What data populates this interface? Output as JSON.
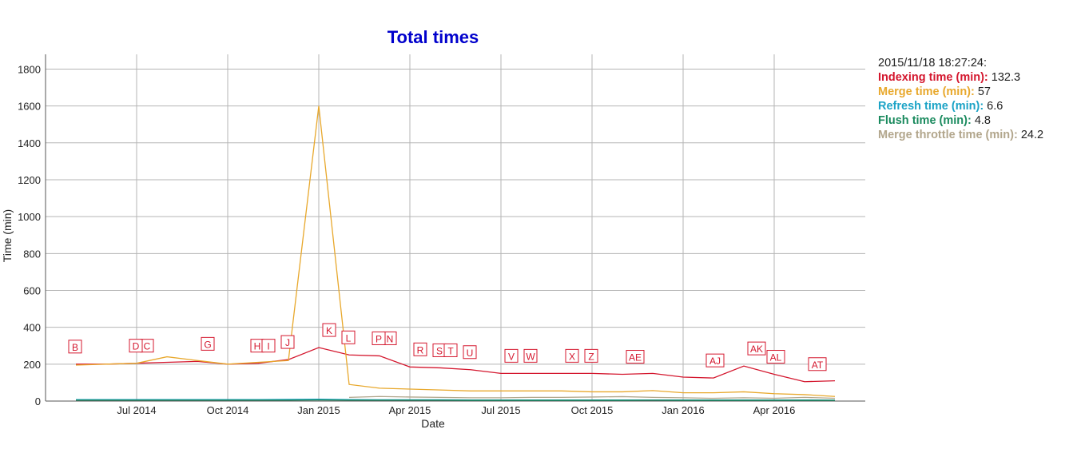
{
  "chart_data": {
    "type": "line",
    "title": "Total times",
    "x_label": "Date",
    "y_label": "Time (min)",
    "x": [
      "2014-05",
      "2014-06",
      "2014-07",
      "2014-08",
      "2014-09",
      "2014-10",
      "2014-11",
      "2014-12",
      "2015-01",
      "2015-02",
      "2015-03",
      "2015-04",
      "2015-05",
      "2015-06",
      "2015-07",
      "2015-08",
      "2015-09",
      "2015-10",
      "2015-11",
      "2015-12",
      "2016-01",
      "2016-02",
      "2016-03",
      "2016-04",
      "2016-05",
      "2016-06"
    ],
    "series": [
      {
        "name": "Indexing time (min)",
        "color": "#d4172e",
        "values": [
          200,
          200,
          205,
          210,
          215,
          200,
          205,
          225,
          290,
          250,
          245,
          185,
          180,
          170,
          150,
          150,
          150,
          150,
          145,
          150,
          130,
          125,
          190,
          145,
          105,
          110
        ]
      },
      {
        "name": "Merge time (min)",
        "color": "#e8a82c",
        "values": [
          195,
          200,
          205,
          240,
          220,
          200,
          210,
          220,
          1600,
          90,
          70,
          65,
          60,
          55,
          55,
          55,
          55,
          50,
          50,
          57,
          45,
          45,
          50,
          40,
          35,
          25
        ]
      },
      {
        "name": "Refresh time (min)",
        "color": "#1ba3c6",
        "values": [
          8,
          8,
          8,
          8,
          8,
          8,
          8,
          9,
          10,
          8,
          7,
          7,
          7,
          6,
          6,
          6,
          6,
          6,
          6,
          6,
          6,
          6,
          6,
          6,
          6,
          5
        ]
      },
      {
        "name": "Flush time (min)",
        "color": "#1a8a5e",
        "values": [
          5,
          5,
          5,
          5,
          5,
          5,
          5,
          5,
          6,
          5,
          5,
          5,
          5,
          4,
          4,
          4,
          4,
          4,
          4,
          5,
          4,
          4,
          4,
          4,
          4,
          4
        ]
      },
      {
        "name": "Merge throttle time (min)",
        "color": "#b2a68c",
        "values": [
          null,
          null,
          null,
          null,
          null,
          null,
          null,
          null,
          null,
          20,
          25,
          22,
          20,
          18,
          18,
          20,
          20,
          22,
          24,
          20,
          18,
          15,
          18,
          15,
          20,
          15
        ]
      }
    ],
    "xlim": [
      "2014-04",
      "2016-07"
    ],
    "xticks": [
      {
        "value": "2014-07",
        "label": "Jul 2014"
      },
      {
        "value": "2014-10",
        "label": "Oct 2014"
      },
      {
        "value": "2015-01",
        "label": "Jan 2015"
      },
      {
        "value": "2015-04",
        "label": "Apr 2015"
      },
      {
        "value": "2015-07",
        "label": "Jul 2015"
      },
      {
        "value": "2015-10",
        "label": "Oct 2015"
      },
      {
        "value": "2016-01",
        "label": "Jan 2016"
      },
      {
        "value": "2016-04",
        "label": "Apr 2016"
      }
    ],
    "ylim": [
      0,
      1880
    ],
    "yticks": [
      0,
      200,
      400,
      600,
      800,
      1000,
      1200,
      1400,
      1600,
      1800
    ],
    "grid": true,
    "annotations": [
      {
        "x": "2014-05",
        "label": "B"
      },
      {
        "x": "2014-07",
        "label": "C"
      },
      {
        "x": "2014-07",
        "label": "D"
      },
      {
        "x": "2014-09",
        "label": "G"
      },
      {
        "x": "2014-11",
        "label": "H"
      },
      {
        "x": "2014-11",
        "label": "I"
      },
      {
        "x": "2014-12",
        "label": "J"
      },
      {
        "x": "2015-01",
        "label": "K"
      },
      {
        "x": "2015-02",
        "label": "L"
      },
      {
        "x": "2015-03",
        "label": "N"
      },
      {
        "x": "2015-03",
        "label": "P"
      },
      {
        "x": "2015-04",
        "label": "R"
      },
      {
        "x": "2015-05",
        "label": "S"
      },
      {
        "x": "2015-05",
        "label": "T"
      },
      {
        "x": "2015-06",
        "label": "U"
      },
      {
        "x": "2015-07",
        "label": "V"
      },
      {
        "x": "2015-08",
        "label": "W"
      },
      {
        "x": "2015-09",
        "label": "X"
      },
      {
        "x": "2015-10",
        "label": "Z"
      },
      {
        "x": "2015-11",
        "label": "AE"
      },
      {
        "x": "2016-02",
        "label": "AJ"
      },
      {
        "x": "2016-03",
        "label": "AK"
      },
      {
        "x": "2016-04",
        "label": "AL"
      },
      {
        "x": "2016-05",
        "label": "AT"
      }
    ],
    "legend": {
      "timestamp": "2015/11/18 18:27:24:",
      "values": [
        132.3,
        57,
        6.6,
        4.8,
        24.2
      ]
    }
  }
}
